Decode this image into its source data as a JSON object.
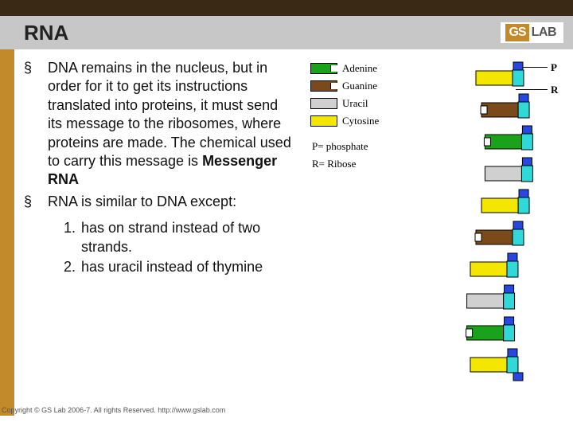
{
  "header": {
    "title": "RNA",
    "logo_gs": "GS",
    "logo_lab": "LAB",
    "top_bar_color": "#3a2a15",
    "title_bg": "#c7c7c7",
    "strip_color": "#c28a2a"
  },
  "bullets": [
    {
      "pre": "DNA remains in the nucleus, but in order for it to get its instructions translated into proteins, it must send its message to the ribosomes, where proteins are made. The chemical used to carry this message is ",
      "bold": "Messenger RNA"
    },
    {
      "pre": "RNA is similar to DNA except:",
      "bold": ""
    }
  ],
  "numbered": [
    {
      "n": "1.",
      "text": "has on strand instead of two strands."
    },
    {
      "n": "2.",
      "text": "has uracil instead of thymine"
    }
  ],
  "legend": {
    "adenine": {
      "label": "Adenine",
      "color": "#1aa31a"
    },
    "guanine": {
      "label": "Guanine",
      "color": "#7a4a1a"
    },
    "uracil": {
      "label": "Uracil",
      "color": "#d0d0d0"
    },
    "cytosine": {
      "label": "Cytosine",
      "color": "#f5e600"
    },
    "p_note": "P= phosphate",
    "r_note": "R= Ribose",
    "p_label": "P",
    "r_label": "R"
  },
  "rna": {
    "backbone_p_color": "#2648e0",
    "backbone_r_color": "#30d8d8",
    "bases": [
      {
        "type": "cytosine",
        "color": "#f5e600"
      },
      {
        "type": "guanine",
        "color": "#7a4a1a"
      },
      {
        "type": "adenine",
        "color": "#1aa31a"
      },
      {
        "type": "uracil",
        "color": "#d0d0d0"
      },
      {
        "type": "cytosine",
        "color": "#f5e600"
      },
      {
        "type": "guanine",
        "color": "#7a4a1a"
      },
      {
        "type": "cytosine",
        "color": "#f5e600"
      },
      {
        "type": "uracil",
        "color": "#d0d0d0"
      },
      {
        "type": "adenine",
        "color": "#1aa31a"
      },
      {
        "type": "cytosine",
        "color": "#f5e600"
      }
    ]
  },
  "footer": {
    "copyright": "Copyright © GS Lab 2006-7. All rights Reserved. http://www.gslab.com"
  }
}
